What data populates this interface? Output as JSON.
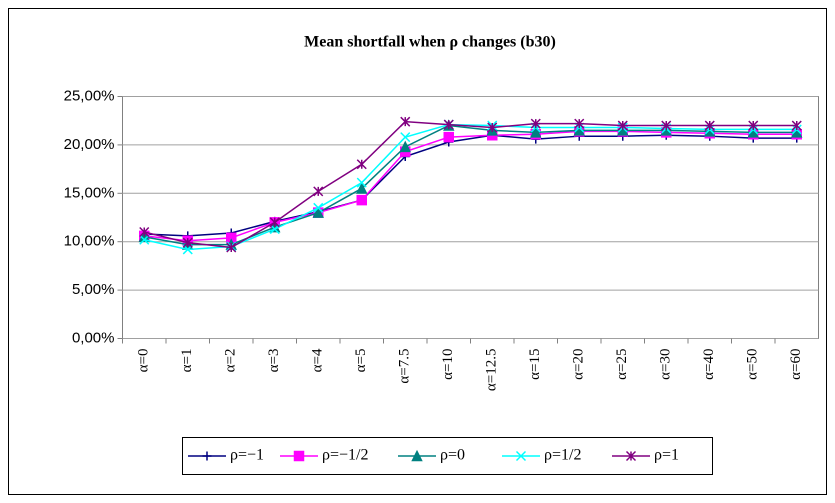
{
  "chart_data": {
    "type": "line",
    "title": "Mean shortfall when ρ changes (b30)",
    "categories": [
      "α=0",
      "α=1",
      "α=2",
      "α=3",
      "α=4",
      "α=5",
      "α=7.5",
      "α=10",
      "α=12.5",
      "α=15",
      "α=20",
      "α=25",
      "α=30",
      "α=40",
      "α=50",
      "α=60"
    ],
    "ylim": [
      0,
      25
    ],
    "yticks": [
      {
        "value": 0,
        "label": "0,00%"
      },
      {
        "value": 5,
        "label": "5,00%"
      },
      {
        "value": 10,
        "label": "10,00%"
      },
      {
        "value": 15,
        "label": "15,00%"
      },
      {
        "value": 20,
        "label": "20,00%"
      },
      {
        "value": 25,
        "label": "25,00%"
      }
    ],
    "grid": true,
    "legend": "bottom",
    "series": [
      {
        "name": "ρ=−1",
        "color": "#000080",
        "marker": "plus",
        "values": [
          10.8,
          10.6,
          10.9,
          12.1,
          13.1,
          14.3,
          18.8,
          20.3,
          21.0,
          20.6,
          20.9,
          20.9,
          21.0,
          20.9,
          20.7,
          20.7
        ]
      },
      {
        "name": "ρ=−1/2",
        "color": "#ff00ff",
        "marker": "square",
        "values": [
          10.6,
          10.1,
          10.4,
          12.0,
          13.0,
          14.3,
          19.3,
          20.8,
          21.0,
          21.1,
          21.4,
          21.4,
          21.3,
          21.2,
          21.1,
          21.1
        ]
      },
      {
        "name": "ρ=0",
        "color": "#008080",
        "marker": "triangle",
        "values": [
          10.5,
          9.7,
          9.7,
          11.5,
          13.0,
          15.5,
          19.8,
          22.0,
          21.5,
          21.3,
          21.5,
          21.5,
          21.5,
          21.4,
          21.3,
          21.3
        ]
      },
      {
        "name": "ρ=1/2",
        "color": "#00ffff",
        "marker": "x",
        "values": [
          10.2,
          9.2,
          9.5,
          11.3,
          13.5,
          16.1,
          20.8,
          22.1,
          22.0,
          21.8,
          21.8,
          21.8,
          21.7,
          21.6,
          21.6,
          21.6
        ]
      },
      {
        "name": "ρ=1",
        "color": "#800080",
        "marker": "star",
        "values": [
          11.0,
          9.9,
          9.4,
          12.0,
          15.2,
          18.0,
          22.4,
          22.1,
          21.8,
          22.2,
          22.2,
          22.0,
          22.0,
          22.0,
          22.0,
          22.0
        ]
      }
    ]
  }
}
